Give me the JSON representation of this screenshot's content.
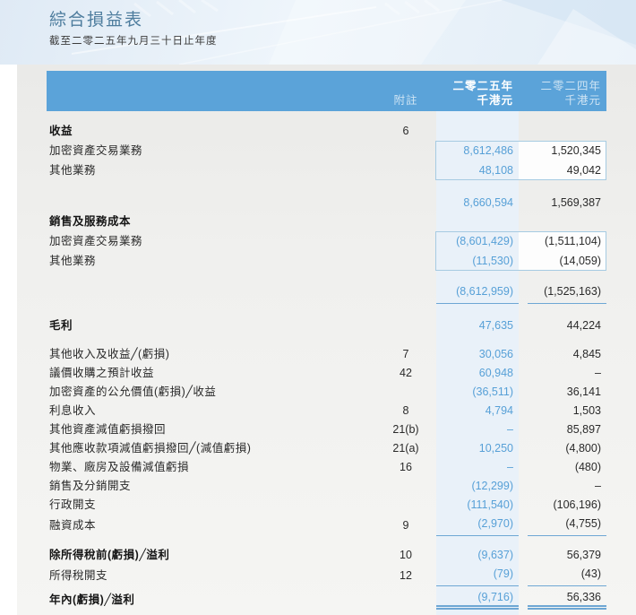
{
  "page": {
    "title": "綜合損益表",
    "subtitle": "截至二零二五年九月三十日止年度"
  },
  "table": {
    "header": {
      "note": "附註",
      "y2025": {
        "line1": "二零二五年",
        "line2": "千港元"
      },
      "y2024": {
        "line1": "二零二四年",
        "line2": "千港元"
      }
    },
    "rows": [
      {
        "label": "收益",
        "note": "6",
        "v2025": "",
        "v2024": "",
        "bold": true,
        "gap": 12
      },
      {
        "label": "加密資產交易業務",
        "note": "",
        "v2025": "8,612,486",
        "v2024": "1,520,345",
        "boxed": true
      },
      {
        "label": "其他業務",
        "note": "",
        "v2025": "48,108",
        "v2024": "49,042",
        "boxed": true
      },
      {
        "label": "",
        "note": "",
        "v2025": "8,660,594",
        "v2024": "1,569,387",
        "gap": 15
      },
      {
        "label": "銷售及服務成本",
        "note": "",
        "v2025": "",
        "v2024": "",
        "bold": true
      },
      {
        "label": "加密資產交易業務",
        "note": "",
        "v2025": "(8,601,429)",
        "v2024": "(1,511,104)",
        "boxed": true
      },
      {
        "label": "其他業務",
        "note": "",
        "v2025": "(11,530)",
        "v2024": "(14,059)",
        "boxed": true
      },
      {
        "label": "",
        "note": "",
        "v2025": "(8,612,959)",
        "v2024": "(1,525,163)",
        "gap": 13,
        "underline": "single"
      },
      {
        "label": "毛利",
        "note": "",
        "v2025": "47,635",
        "v2024": "44,224",
        "bold": true,
        "gap": 14
      },
      {
        "label": "其他收入及收益╱(虧損)",
        "note": "7",
        "v2025": "30,056",
        "v2024": "4,845",
        "gap": 11
      },
      {
        "label": "議價收購之預計收益",
        "note": "42",
        "v2025": "60,948",
        "v2024": "–"
      },
      {
        "label": "加密資產的公允價值(虧損)╱收益",
        "note": "",
        "v2025": "(36,511)",
        "v2024": "36,141"
      },
      {
        "label": "利息收入",
        "note": "8",
        "v2025": "4,794",
        "v2024": "1,503"
      },
      {
        "label": "其他資產減值虧損撥回",
        "note": "21(b)",
        "v2025": "–",
        "v2024": "85,897"
      },
      {
        "label": "其他應收款項減值虧損撥回╱(減值虧損)",
        "note": "21(a)",
        "v2025": "10,250",
        "v2024": "(4,800)"
      },
      {
        "label": "物業、廠房及設備減值虧損",
        "note": "16",
        "v2025": "–",
        "v2024": "(480)"
      },
      {
        "label": "銷售及分銷開支",
        "note": "",
        "v2025": "(12,299)",
        "v2024": "–"
      },
      {
        "label": "行政開支",
        "note": "",
        "v2025": "(111,540)",
        "v2024": "(106,196)"
      },
      {
        "label": "融資成本",
        "note": "9",
        "v2025": "(2,970)",
        "v2024": "(4,755)",
        "underline": "single"
      },
      {
        "label": "除所得稅前(虧損)╱溢利",
        "note": "10",
        "v2025": "(9,637)",
        "v2024": "56,379",
        "bold": true,
        "gap": 11
      },
      {
        "label": "所得稅開支",
        "note": "12",
        "v2025": "(79)",
        "v2024": "(43)",
        "underline": "single"
      },
      {
        "label": "年內(虧損)╱溢利",
        "note": "",
        "v2025": "(9,716)",
        "v2024": "56,336",
        "bold": true,
        "gap": 4,
        "underline": "double"
      }
    ]
  },
  "colors": {
    "accent_bar": "#5ba3d9",
    "title": "#4e7d9e",
    "strip_2025": "#e9f1f9",
    "value_2025_text": "#57a0d7",
    "rule_line": "#6ea7d4",
    "box_border": "#a6cbe2",
    "ink": "#2a2a2a"
  }
}
